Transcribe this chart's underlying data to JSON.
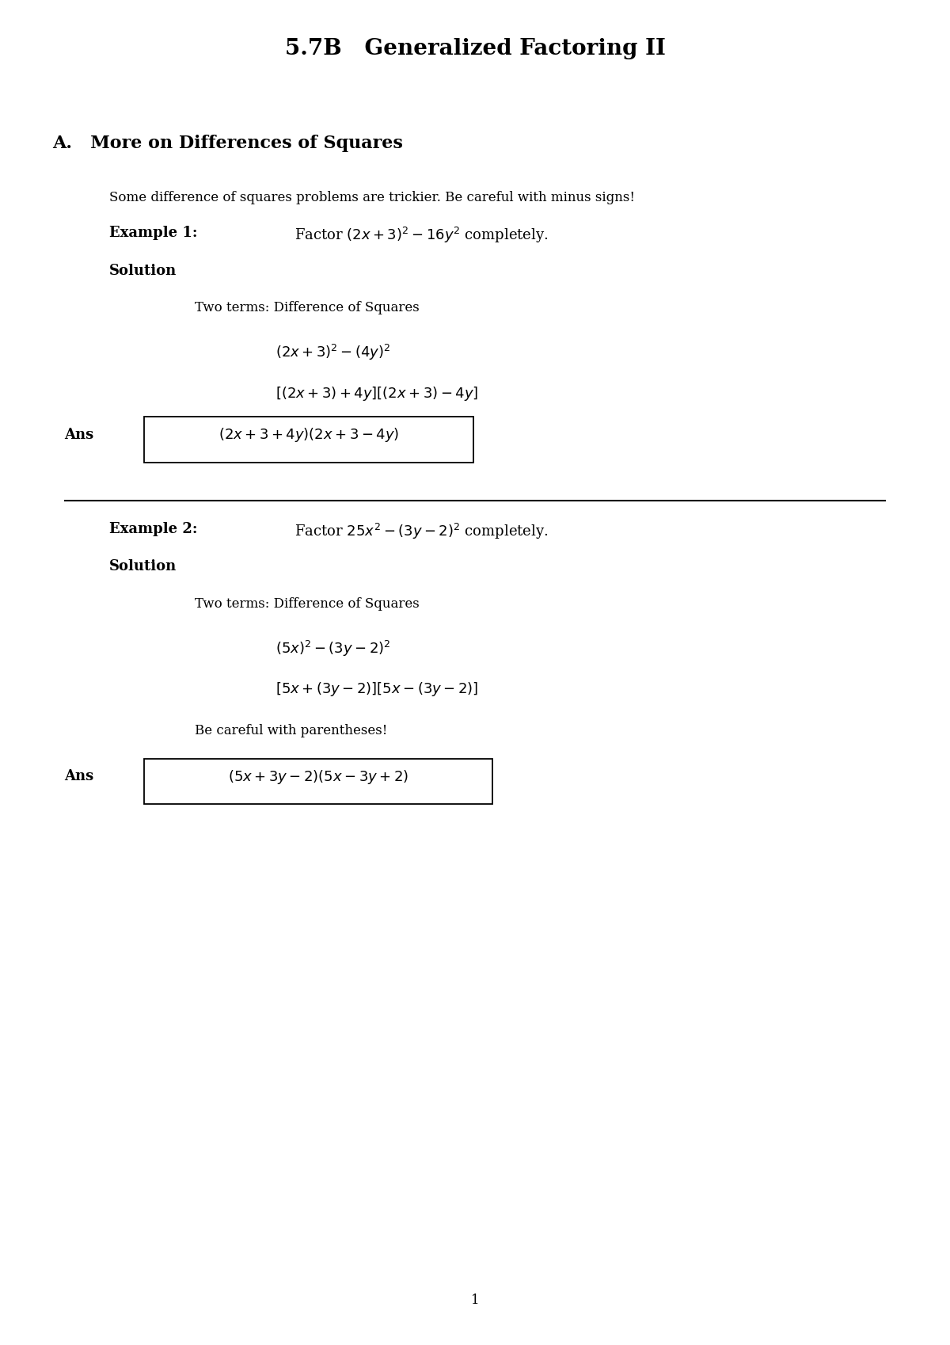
{
  "title": "5.7B   Generalized Factoring II",
  "section_a": "A.   More on Differences of Squares",
  "intro_text": "Some difference of squares problems are trickier. Be careful with minus signs!",
  "example1_label": "Example 1:",
  "example1_problem": "Factor $(2x + 3)^2 - 16y^2$ completely.",
  "solution1_label": "Solution",
  "sol1_step1": "Two terms: Difference of Squares",
  "sol1_eq1": "$(2x + 3)^2 - (4y)^2$",
  "sol1_eq2": "$[(2x + 3) + 4y][(2x + 3) - 4y]$",
  "ans1_label": "Ans",
  "ans1_box": "$(2x + 3 + 4y)(2x + 3 - 4y)$",
  "example2_label": "Example 2:",
  "example2_problem": "Factor $25x^2 - (3y - 2)^2$ completely.",
  "solution2_label": "Solution",
  "sol2_step1": "Two terms: Difference of Squares",
  "sol2_eq1": "$(5x)^2 - (3y - 2)^2$",
  "sol2_eq2": "$[5x + (3y - 2)][5x - (3y - 2)]$",
  "sol2_note": "Be careful with parentheses!",
  "ans2_label": "Ans",
  "ans2_box": "$(5x + 3y - 2)(5x - 3y + 2)$",
  "page_number": "1",
  "bg_color": "#ffffff",
  "text_color": "#000000"
}
